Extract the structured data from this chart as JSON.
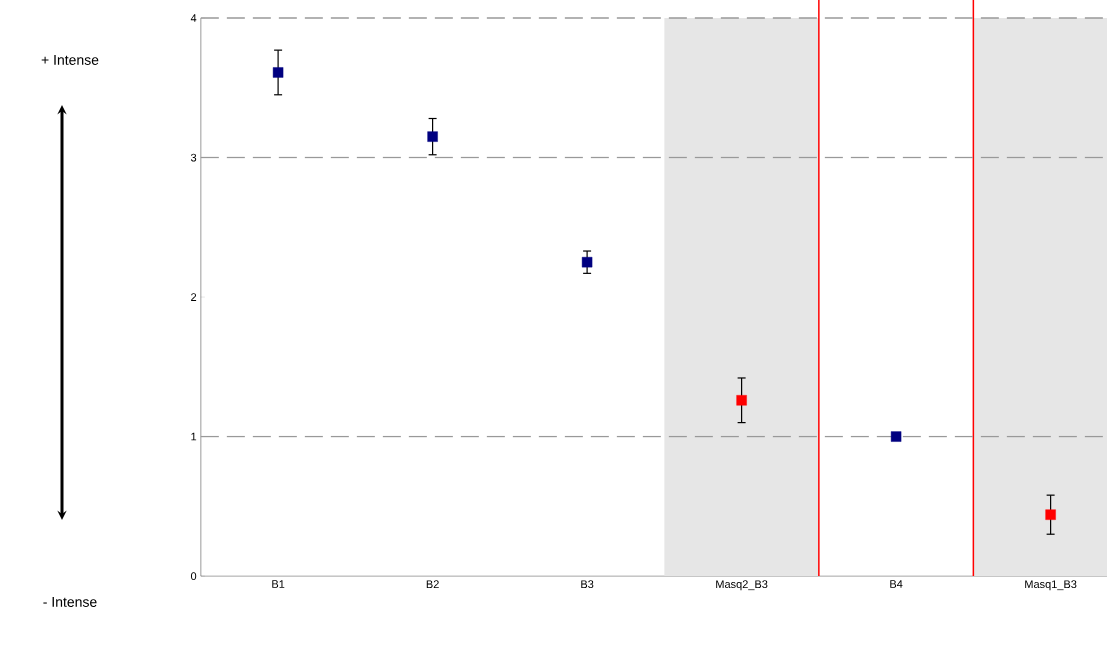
{
  "chart_data": {
    "type": "scatter",
    "categories": [
      "B1",
      "B2",
      "B3",
      "Masq2_B3",
      "B4",
      "Masq1_B3"
    ],
    "series": [
      {
        "color": "#000080",
        "values": [
          3.61,
          3.15,
          2.25,
          null,
          1.0,
          null
        ],
        "errors": [
          0.16,
          0.13,
          0.08,
          null,
          null,
          null
        ]
      },
      {
        "color": "#ff0000",
        "values": [
          null,
          null,
          null,
          1.26,
          null,
          0.44
        ],
        "errors": [
          null,
          null,
          null,
          0.16,
          null,
          0.14
        ]
      }
    ],
    "ylim": [
      0,
      4
    ],
    "yticks": [
      0,
      1,
      2,
      3,
      4
    ],
    "marker": "square",
    "ref_lines": [
      {
        "axis": "y",
        "value": 1,
        "color": "#999999",
        "line_style": "dashed"
      },
      {
        "axis": "y",
        "value": 3,
        "color": "#999999",
        "line_style": "dashed"
      }
    ],
    "annotations": [
      "+ Intense",
      "- Intense"
    ]
  }
}
